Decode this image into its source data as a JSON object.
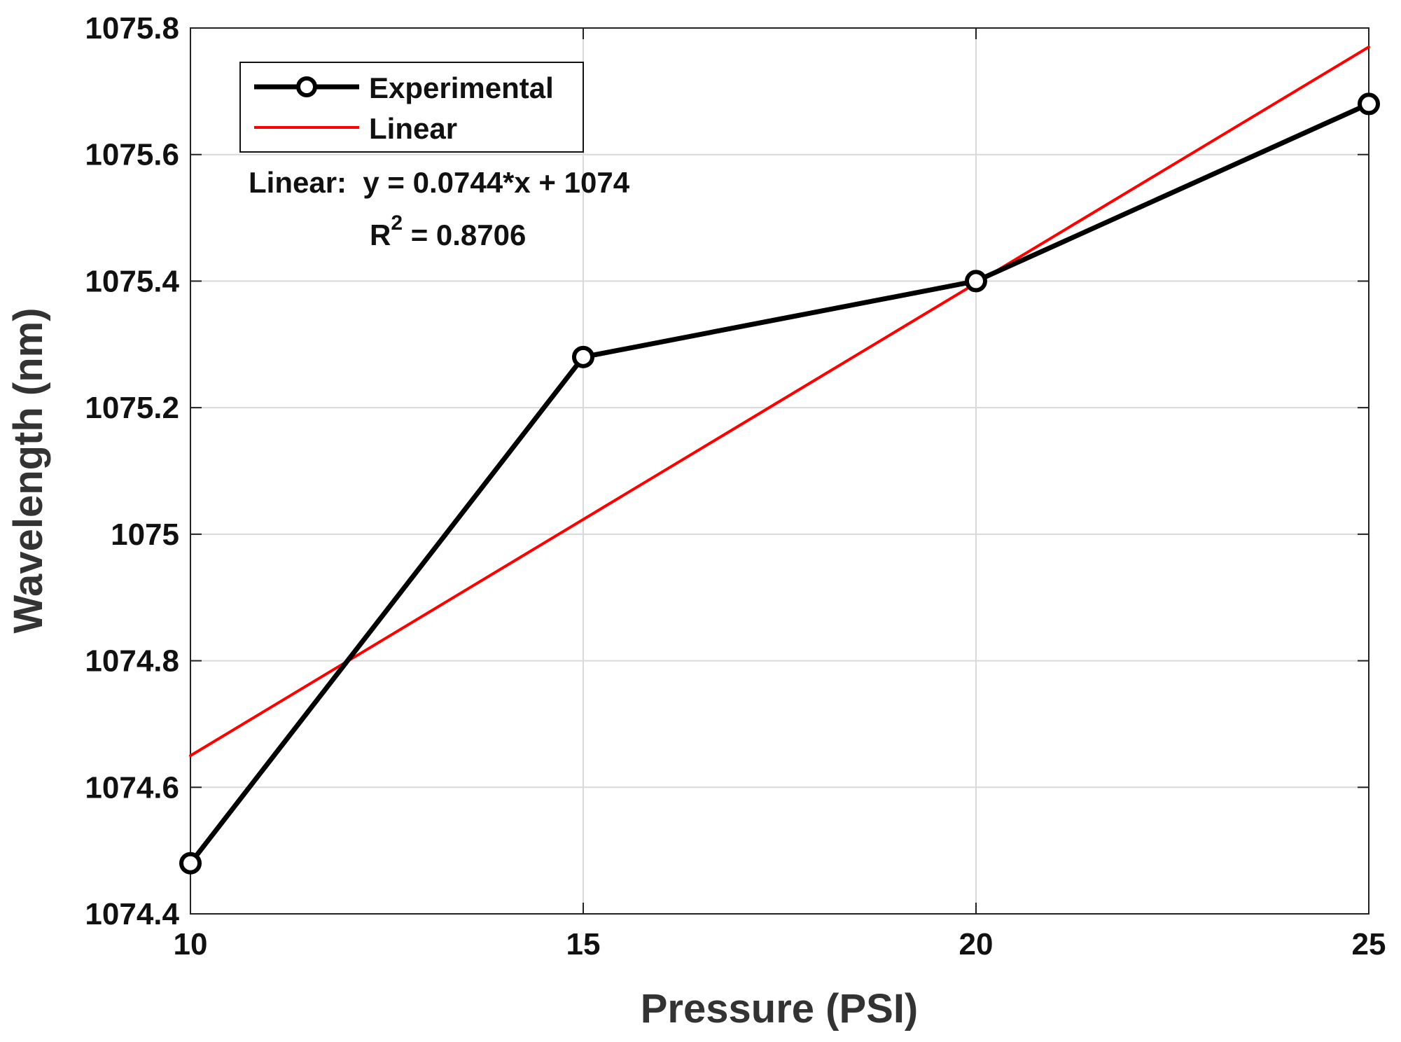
{
  "chart_data": {
    "type": "line",
    "title": "",
    "xlabel": "Pressure (PSI)",
    "ylabel": "Wavelength (nm)",
    "xlim": [
      10,
      25
    ],
    "ylim": [
      1074.4,
      1075.8
    ],
    "grid": true,
    "x_ticks": [
      {
        "value": 10,
        "label": "10"
      },
      {
        "value": 15,
        "label": "15"
      },
      {
        "value": 20,
        "label": "20"
      },
      {
        "value": 25,
        "label": "25"
      }
    ],
    "y_ticks": [
      {
        "value": 1074.4,
        "label": "1074.4"
      },
      {
        "value": 1074.6,
        "label": "1074.6"
      },
      {
        "value": 1074.8,
        "label": "1074.8"
      },
      {
        "value": 1075.0,
        "label": "1075"
      },
      {
        "value": 1075.2,
        "label": "1075.2"
      },
      {
        "value": 1075.4,
        "label": "1075.4"
      },
      {
        "value": 1075.6,
        "label": "1075.6"
      },
      {
        "value": 1075.8,
        "label": "1075.8"
      }
    ],
    "series": [
      {
        "name": "Experimental",
        "color": "#000000",
        "marker": "circle",
        "x": [
          10,
          15,
          20,
          25
        ],
        "y": [
          1074.48,
          1075.28,
          1075.4,
          1075.68
        ]
      },
      {
        "name": "Linear",
        "color": "#ff0000",
        "marker": "none",
        "x": [
          10,
          25
        ],
        "y": [
          1074.65,
          1075.77
        ]
      }
    ],
    "legend": {
      "position": "top-left",
      "entries": [
        "Experimental",
        "Linear"
      ]
    },
    "annotation": {
      "equation": "Linear:  y = 0.0744*x + 1074",
      "r2_prefix": "R",
      "r2_superscript": "2",
      "r2_value": " = 0.8706"
    }
  }
}
